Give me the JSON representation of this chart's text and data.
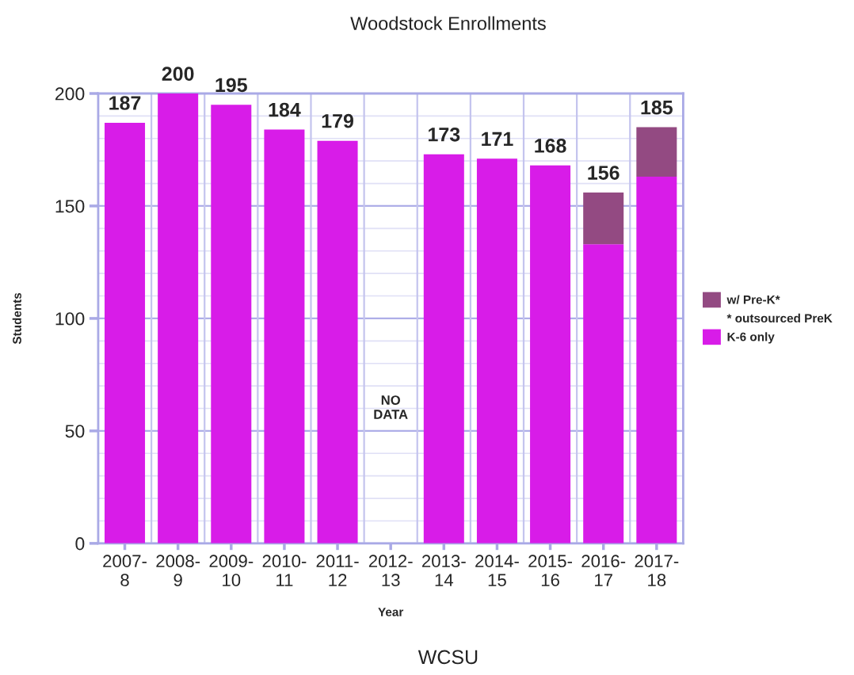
{
  "chart_data": {
    "type": "bar",
    "title": "Woodstock Enrollments",
    "xlabel": "Year",
    "ylabel": "Students",
    "categories": [
      "2007-\n8",
      "2008-\n9",
      "2009-\n10",
      "2010-\n11",
      "2011-\n12",
      "2012-\n13",
      "2013-\n14",
      "2014-\n15",
      "2015-\n16",
      "2016-\n17",
      "2017-\n18"
    ],
    "stacked": true,
    "series": [
      {
        "name": "K-6 only",
        "color": "#d81ce8",
        "values": [
          187,
          200,
          195,
          184,
          179,
          null,
          173,
          171,
          168,
          133,
          163
        ]
      },
      {
        "name": "w/ Pre-K*",
        "color": "#934a82",
        "values": [
          null,
          null,
          null,
          null,
          null,
          null,
          null,
          null,
          null,
          23,
          22
        ]
      }
    ],
    "totals": [
      "187",
      "200",
      "195",
      "184",
      "179",
      null,
      "173",
      "171",
      "168",
      "156",
      "185"
    ],
    "ylim": [
      0,
      200
    ],
    "yticks": [
      0,
      {
        "value": 10,
        "label": null
      },
      {
        "value": 20,
        "label": null
      },
      {
        "value": 30,
        "label": null
      },
      {
        "value": 40,
        "label": null
      },
      50,
      {
        "value": 60,
        "label": null
      },
      {
        "value": 70,
        "label": null
      },
      {
        "value": 80,
        "label": null
      },
      {
        "value": 90,
        "label": null
      },
      100,
      {
        "value": 110,
        "label": null
      },
      {
        "value": 120,
        "label": null
      },
      {
        "value": 130,
        "label": null
      },
      {
        "value": 140,
        "label": null
      },
      150,
      {
        "value": 160,
        "label": null
      },
      {
        "value": 170,
        "label": null
      },
      {
        "value": 180,
        "label": null
      },
      {
        "value": 190,
        "label": null
      },
      200
    ],
    "grid": true,
    "legend": "right",
    "annotations": [
      "NO\nDATA",
      "* outsourced PreK",
      "WCSU"
    ]
  }
}
